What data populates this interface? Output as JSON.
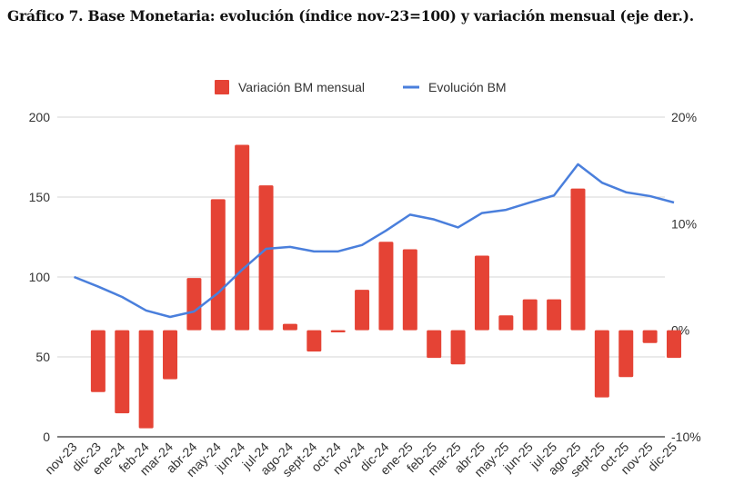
{
  "chart_data": {
    "type": "bar+line",
    "title": "Gráfico 7. Base Monetaria: evolución (índice nov-23=100) y variación mensual (eje der.).",
    "categories": [
      "nov-23",
      "dic-23",
      "ene-24",
      "feb-24",
      "mar-24",
      "abr-24",
      "may-24",
      "jun-24",
      "jul-24",
      "ago-24",
      "sept-24",
      "oct-24",
      "nov-24",
      "dic-24",
      "ene-25",
      "feb-25",
      "mar-25",
      "abr-25",
      "may-25",
      "jun-25",
      "jul-25",
      "ago-25",
      "sept-25",
      "oct-25",
      "nov-25",
      "dic-25"
    ],
    "series": [
      {
        "name": "Variación BM mensual",
        "type": "bar",
        "axis": "right",
        "unit": "%",
        "color": "#e54335",
        "values": [
          null,
          -5.8,
          -7.8,
          -9.2,
          -4.6,
          4.9,
          12.3,
          17.4,
          13.6,
          0.6,
          -2.0,
          -0.2,
          3.8,
          8.3,
          7.6,
          -2.6,
          -3.2,
          7.0,
          1.4,
          2.9,
          2.9,
          13.3,
          -6.3,
          -4.4,
          -1.2,
          -2.6
        ]
      },
      {
        "name": "Evolución BM",
        "type": "line",
        "axis": "left",
        "color": "#4a7fdc",
        "values": [
          100,
          94,
          87.5,
          79,
          75,
          78.4,
          90,
          104.5,
          117.6,
          118.8,
          116,
          116,
          120,
          129,
          139,
          136,
          131,
          140,
          142,
          146.6,
          151,
          170.5,
          159,
          153,
          150.6,
          146.6
        ]
      }
    ],
    "left_axis": {
      "ylim": [
        0,
        200
      ],
      "ticks": [
        "0",
        "50",
        "100",
        "150",
        "200"
      ]
    },
    "right_axis": {
      "ylim": [
        -10,
        20
      ],
      "ticks": [
        "-10%",
        "0%",
        "10%",
        "20%"
      ]
    },
    "legend": "top",
    "grid": true
  }
}
